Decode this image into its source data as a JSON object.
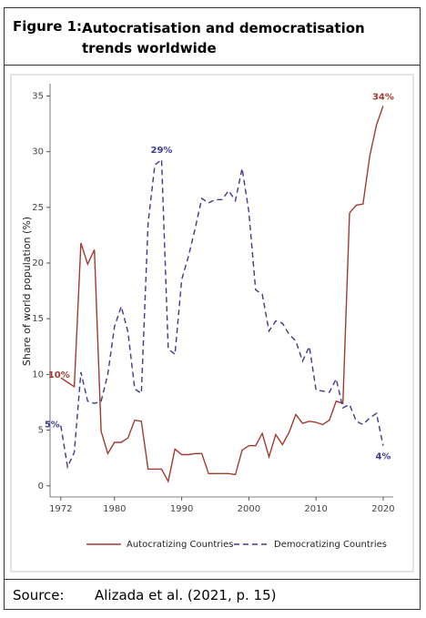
{
  "header": {
    "label": "Figure 1:",
    "title": "Autocratisation and democratisation trends worldwide"
  },
  "source": {
    "label": "Source:",
    "text": "Alizada et al. (2021, p. 15)"
  },
  "chart_data": {
    "type": "line",
    "ylabel": "Share of world population (%)",
    "x": [
      1972,
      1973,
      1974,
      1975,
      1976,
      1977,
      1978,
      1979,
      1980,
      1981,
      1982,
      1983,
      1984,
      1985,
      1986,
      1987,
      1988,
      1989,
      1990,
      1991,
      1992,
      1993,
      1994,
      1995,
      1996,
      1997,
      1998,
      1999,
      2000,
      2001,
      2002,
      2003,
      2004,
      2005,
      2006,
      2007,
      2008,
      2009,
      2010,
      2011,
      2012,
      2013,
      2014,
      2015,
      2016,
      2017,
      2018,
      2019,
      2020
    ],
    "series": [
      {
        "name": "Autocratizing Countries",
        "color": "#a23b2e",
        "dash": false,
        "values": [
          9.7,
          9.3,
          8.9,
          21.8,
          19.9,
          21.2,
          4.9,
          2.9,
          3.9,
          3.9,
          4.3,
          5.9,
          5.8,
          1.5,
          1.5,
          1.5,
          0.4,
          3.3,
          2.8,
          2.8,
          2.9,
          2.9,
          1.1,
          1.1,
          1.1,
          1.1,
          1.0,
          3.2,
          3.6,
          3.6,
          4.7,
          2.6,
          4.6,
          3.7,
          4.8,
          6.4,
          5.6,
          5.8,
          5.7,
          5.5,
          5.9,
          7.6,
          7.4,
          24.5,
          25.2,
          25.3,
          29.6,
          32.4,
          34.1
        ],
        "value_labels": [
          "10%",
          null,
          null,
          null,
          null,
          null,
          null,
          null,
          null,
          null,
          null,
          null,
          null,
          null,
          null,
          null,
          null,
          null,
          null,
          null,
          null,
          null,
          null,
          null,
          null,
          null,
          null,
          null,
          null,
          null,
          null,
          null,
          null,
          null,
          null,
          null,
          null,
          null,
          null,
          null,
          null,
          null,
          null,
          null,
          null,
          null,
          null,
          null,
          "34%"
        ]
      },
      {
        "name": "Democratizing Countries",
        "color": "#3b3b8f",
        "dash": true,
        "values": [
          5.4,
          1.7,
          3.0,
          10.2,
          7.6,
          7.4,
          7.6,
          10.0,
          14.3,
          16.1,
          13.8,
          8.7,
          8.3,
          23.6,
          28.8,
          29.3,
          12.3,
          11.8,
          18.5,
          20.6,
          23.1,
          25.8,
          25.4,
          25.7,
          25.7,
          26.5,
          25.6,
          28.5,
          24.6,
          17.6,
          17.2,
          13.9,
          14.8,
          14.6,
          13.6,
          13.0,
          11.2,
          12.5,
          8.6,
          8.5,
          8.4,
          9.6,
          7.0,
          7.3,
          5.8,
          5.5,
          6.1,
          6.5,
          3.6
        ],
        "value_labels": [
          "5%",
          null,
          null,
          null,
          null,
          null,
          null,
          null,
          null,
          null,
          null,
          null,
          null,
          null,
          null,
          "29%",
          null,
          null,
          null,
          null,
          null,
          null,
          null,
          null,
          null,
          null,
          null,
          null,
          null,
          null,
          null,
          null,
          null,
          null,
          null,
          null,
          null,
          null,
          null,
          null,
          null,
          null,
          null,
          null,
          null,
          null,
          null,
          null,
          "4%"
        ]
      }
    ],
    "xlim": [
      1970.4,
      2021.5
    ],
    "xticks": [
      1972,
      1980,
      1990,
      2000,
      2010,
      2020
    ],
    "ylim": [
      -1,
      36.1
    ],
    "yticks": [
      0,
      5,
      10,
      15,
      20,
      25,
      30,
      35
    ]
  }
}
